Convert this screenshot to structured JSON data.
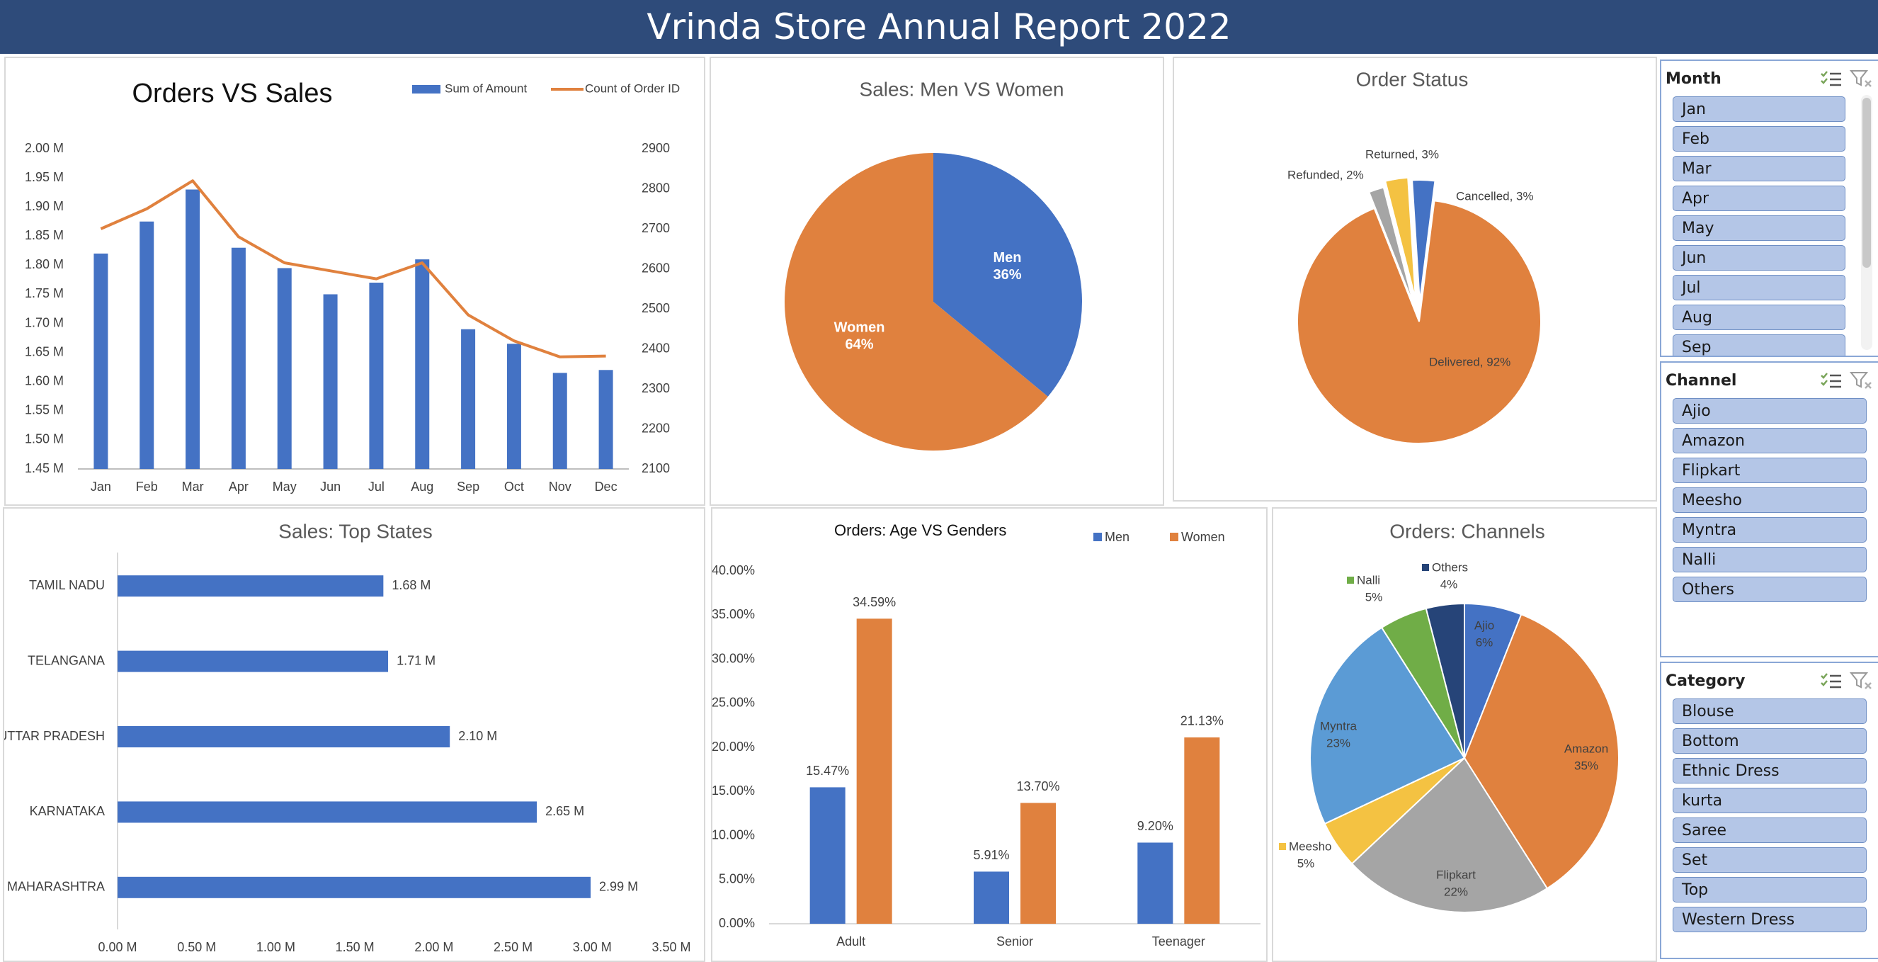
{
  "report_title": "Vrinda Store Annual Report 2022",
  "colors": {
    "blue": "#4472c4",
    "orange": "#e0813e",
    "gray": "#a5a5a5",
    "yellow": "#f4c242",
    "lightblue": "#5b9bd5",
    "green": "#70ad47",
    "navy": "#264478",
    "header": "#2e4b7a"
  },
  "slicers": {
    "month": {
      "title": "Month",
      "items": [
        "Jan",
        "Feb",
        "Mar",
        "Apr",
        "May",
        "Jun",
        "Jul",
        "Aug",
        "Sep"
      ]
    },
    "channel": {
      "title": "Channel",
      "items": [
        "Ajio",
        "Amazon",
        "Flipkart",
        "Meesho",
        "Myntra",
        "Nalli",
        "Others"
      ]
    },
    "category": {
      "title": "Category",
      "items": [
        "Blouse",
        "Bottom",
        "Ethnic Dress",
        "kurta",
        "Saree",
        "Set",
        "Top",
        "Western Dress"
      ]
    }
  },
  "chart_data": [
    {
      "id": "orders_vs_sales",
      "type": "bar+line",
      "title": "Orders VS Sales",
      "categories": [
        "Jan",
        "Feb",
        "Mar",
        "Apr",
        "May",
        "Jun",
        "Jul",
        "Aug",
        "Sep",
        "Oct",
        "Nov",
        "Dec"
      ],
      "series": [
        {
          "name": "Sum of Amount",
          "type": "bar",
          "axis": "left",
          "values": [
            1.82,
            1.875,
            1.93,
            1.83,
            1.795,
            1.75,
            1.77,
            1.81,
            1.69,
            1.665,
            1.615,
            1.62
          ]
        },
        {
          "name": "Count of Order ID",
          "type": "line",
          "axis": "right",
          "values": [
            2700,
            2750,
            2820,
            2680,
            2615,
            2595,
            2575,
            2615,
            2485,
            2420,
            2380,
            2382
          ]
        }
      ],
      "y_left": {
        "min": 1.45,
        "max": 2.0,
        "step": 0.05,
        "ticks": [
          "1.45 M",
          "1.50 M",
          "1.55 M",
          "1.60 M",
          "1.65 M",
          "1.70 M",
          "1.75 M",
          "1.80 M",
          "1.85 M",
          "1.90 M",
          "1.95 M",
          "2.00 M"
        ]
      },
      "y_right": {
        "min": 2100,
        "max": 2900,
        "step": 100,
        "ticks": [
          "2100",
          "2200",
          "2300",
          "2400",
          "2500",
          "2600",
          "2700",
          "2800",
          "2900"
        ]
      },
      "legend": "top-right"
    },
    {
      "id": "sales_gender",
      "type": "pie",
      "title": "Sales: Men VS Women",
      "slices": [
        {
          "name": "Men",
          "value": 36,
          "label": "36%"
        },
        {
          "name": "Women",
          "value": 64,
          "label": "64%"
        }
      ]
    },
    {
      "id": "order_status",
      "type": "pie",
      "title": "Order Status",
      "slices": [
        {
          "name": "Delivered",
          "value": 92,
          "label": "Delivered, 92%"
        },
        {
          "name": "Refunded",
          "value": 2,
          "label": "Refunded, 2%"
        },
        {
          "name": "Returned",
          "value": 3,
          "label": "Returned, 3%"
        },
        {
          "name": "Cancelled",
          "value": 3,
          "label": "Cancelled, 3%"
        }
      ]
    },
    {
      "id": "top_states",
      "type": "bar",
      "orientation": "horizontal",
      "title": "Sales: Top States",
      "categories": [
        "TAMIL NADU",
        "TELANGANA",
        "UTTAR PRADESH",
        "KARNATAKA",
        "MAHARASHTRA"
      ],
      "values": [
        1.68,
        1.71,
        2.1,
        2.65,
        2.99
      ],
      "value_labels": [
        "1.68 M",
        "1.71 M",
        "2.10 M",
        "2.65 M",
        "2.99 M"
      ],
      "x_ticks": [
        "0.00 M",
        "0.50 M",
        "1.00 M",
        "1.50 M",
        "2.00 M",
        "2.50 M",
        "3.00 M",
        "3.50 M"
      ],
      "xlim": [
        0,
        3.5
      ]
    },
    {
      "id": "age_gender",
      "type": "bar",
      "title": "Orders: Age VS Genders",
      "categories": [
        "Adult",
        "Senior",
        "Teenager"
      ],
      "series": [
        {
          "name": "Men",
          "values": [
            15.47,
            5.91,
            9.2
          ],
          "labels": [
            "15.47%",
            "5.91%",
            "9.20%"
          ]
        },
        {
          "name": "Women",
          "values": [
            34.59,
            13.7,
            21.13
          ],
          "labels": [
            "34.59%",
            "13.70%",
            "21.13%"
          ]
        }
      ],
      "y_ticks": [
        "0.00%",
        "5.00%",
        "10.00%",
        "15.00%",
        "20.00%",
        "25.00%",
        "30.00%",
        "35.00%",
        "40.00%"
      ],
      "ylim": [
        0,
        40
      ],
      "legend": "top-right"
    },
    {
      "id": "channels",
      "type": "pie",
      "title": "Orders: Channels",
      "slices": [
        {
          "name": "Ajio",
          "value": 6,
          "label": "6%"
        },
        {
          "name": "Amazon",
          "value": 35,
          "label": "35%"
        },
        {
          "name": "Flipkart",
          "value": 22,
          "label": "22%"
        },
        {
          "name": "Meesho",
          "value": 5,
          "label": "5%"
        },
        {
          "name": "Myntra",
          "value": 23,
          "label": "23%"
        },
        {
          "name": "Nalli",
          "value": 5,
          "label": "5%"
        },
        {
          "name": "Others",
          "value": 4,
          "label": "4%"
        }
      ]
    }
  ]
}
